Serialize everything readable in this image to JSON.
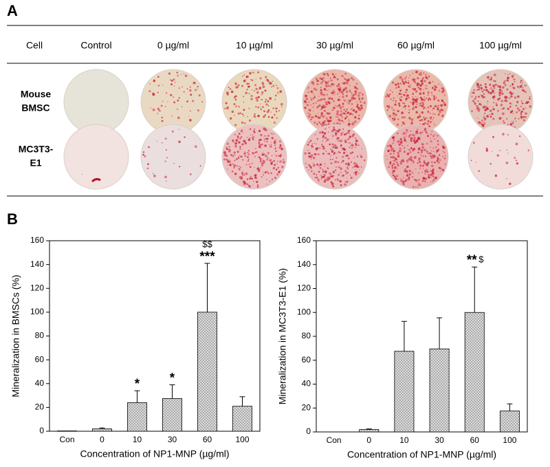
{
  "panel_a": {
    "label": "A",
    "header": [
      "Cell",
      "Control",
      "0 µg/ml",
      "10 µg/ml",
      "30 µg/ml",
      "60 µg/ml",
      "100 µg/ml"
    ],
    "rows": [
      {
        "label": [
          "Mouse",
          "BMSC"
        ]
      },
      {
        "label": [
          "MC3T3-",
          "E1"
        ]
      }
    ]
  },
  "panel_b": {
    "label": "B"
  },
  "chart_data": [
    {
      "type": "bar",
      "ylabel": "Mineralization in BMSCs (%)",
      "xlabel": "Concentration of NP1-MNP (µg/ml)",
      "categories": [
        "Con",
        "0",
        "10",
        "30",
        "60",
        "100"
      ],
      "values": [
        0.3,
        2,
        24,
        27.5,
        100,
        21
      ],
      "errors": [
        0,
        0.8,
        10,
        11.5,
        41,
        8
      ],
      "significance": [
        null,
        null,
        "*",
        "*",
        "***",
        null
      ],
      "significance2": [
        null,
        null,
        null,
        null,
        "$$",
        null
      ],
      "color": "#cfcfcf",
      "ylim": [
        0,
        160
      ],
      "yticks": [
        0,
        20,
        40,
        60,
        80,
        100,
        120,
        140,
        160
      ]
    },
    {
      "type": "bar",
      "ylabel": "Mineralization in MC3T3-E1 (%)",
      "xlabel": "Concentration of NP1-MNP (µg/ml)",
      "categories": [
        "Con",
        "0",
        "10",
        "30",
        "60",
        "100"
      ],
      "values": [
        0,
        2,
        67.5,
        69.5,
        100,
        17.5
      ],
      "errors": [
        0,
        0.5,
        25,
        26,
        38,
        6
      ],
      "significance": [
        null,
        null,
        null,
        null,
        "**",
        null
      ],
      "significance2": [
        null,
        null,
        null,
        null,
        "$",
        null
      ],
      "color": "#cfcfcf",
      "ylim": [
        0,
        160
      ],
      "yticks": [
        0,
        20,
        40,
        60,
        80,
        100,
        120,
        140,
        160
      ]
    }
  ]
}
